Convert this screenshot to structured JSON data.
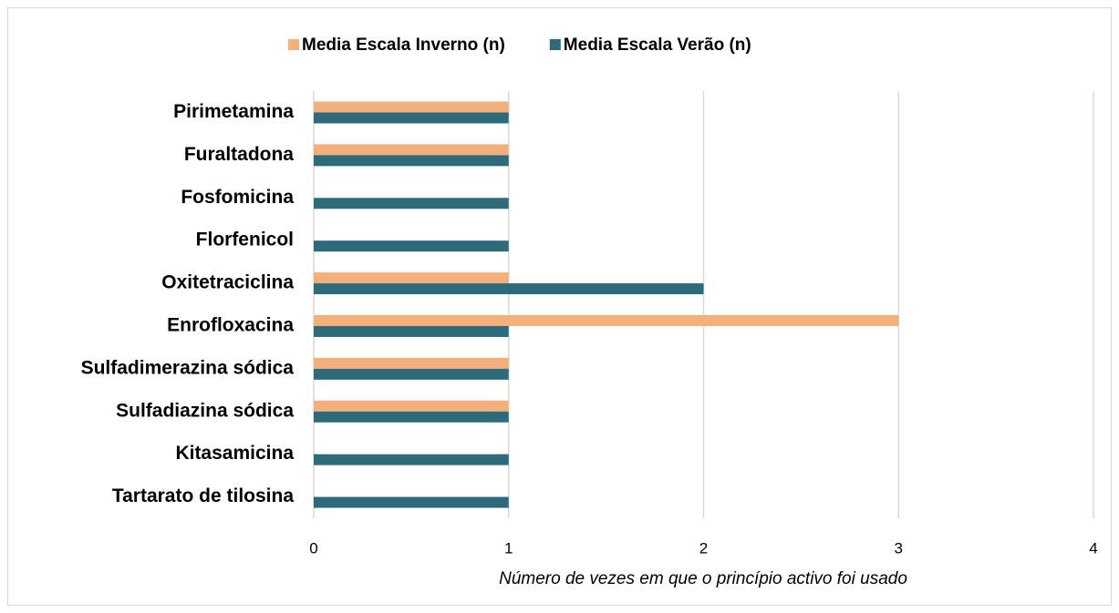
{
  "chart_data": {
    "type": "barh",
    "x_label": "Número de vezes em que o princípio activo foi usado",
    "categories": [
      "Pirimetamina",
      "Furaltadona",
      "Fosfomicina",
      "Florfenicol",
      "Oxitetraciclina",
      "Enrofloxacina",
      "Sulfadimerazina sódica",
      "Sulfadiazina sódica",
      "Kitasamicina",
      "Tartarato de tilosina"
    ],
    "series": [
      {
        "name": "Media Escala Inverno (n)",
        "color": "#f4b07a",
        "values": [
          1,
          1,
          0,
          0,
          1,
          3,
          1,
          1,
          0,
          0
        ]
      },
      {
        "name": "Media Escala Verão (n)",
        "color": "#2e6b7a",
        "values": [
          1,
          1,
          1,
          1,
          2,
          1,
          1,
          1,
          1,
          1
        ]
      }
    ],
    "xlim": [
      0,
      4
    ],
    "xticks": [
      0,
      1,
      2,
      3,
      4
    ],
    "grid": true,
    "legend": "top"
  }
}
